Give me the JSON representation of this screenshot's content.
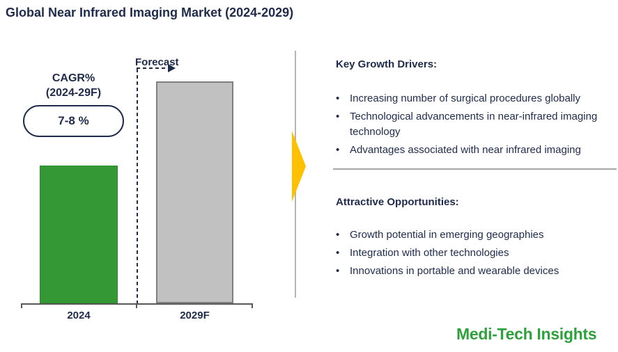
{
  "title": "Global Near Infrared Imaging Market (2024-2029)",
  "chart": {
    "cagr_label_line1": "CAGR%",
    "cagr_label_line2": "(2024-29F)",
    "cagr_value": "7-8 %",
    "forecast_label": "Forecast",
    "x_labels": [
      "2024",
      "2029F"
    ]
  },
  "chart_data": {
    "type": "bar",
    "categories": [
      "2024",
      "2029F"
    ],
    "values": [
      62,
      100
    ],
    "values_note": "relative bar heights, no numeric value axis shown",
    "title": "Global Near Infrared Imaging Market (2024-2029)",
    "xlabel": "",
    "ylabel": "",
    "ylim": [
      0,
      100
    ],
    "grid": false,
    "legend": "none",
    "bar_colors": [
      "#349934",
      "#C1C1C1"
    ],
    "annotations": [
      "CAGR% (2024-29F): 7-8 %",
      "Forecast (applies to 2029F bar)"
    ]
  },
  "right_panel": {
    "bullet_char": "•",
    "sections": [
      {
        "heading": "Key Growth Drivers:",
        "bullets": [
          "Increasing number of surgical procedures globally",
          "Technological advancements in near-infrared imaging technology",
          "Advantages associated with near infrared imaging"
        ]
      },
      {
        "heading": "Attractive Opportunities:",
        "bullets": [
          "Growth potential in emerging geographies",
          "Integration with other technologies",
          "Innovations in portable and wearable devices"
        ]
      }
    ]
  },
  "logo_text": "Medi-Tech Insights",
  "colors": {
    "navy_text": "#1F2B4C",
    "bar_2024_green": "#349934",
    "bar_2029_gray": "#C1C1C1",
    "axis_gray": "#595959",
    "arrow_gold": "#FFC000",
    "logo_green": "#2EA13C",
    "divider_gray": "#A6A6A6"
  }
}
